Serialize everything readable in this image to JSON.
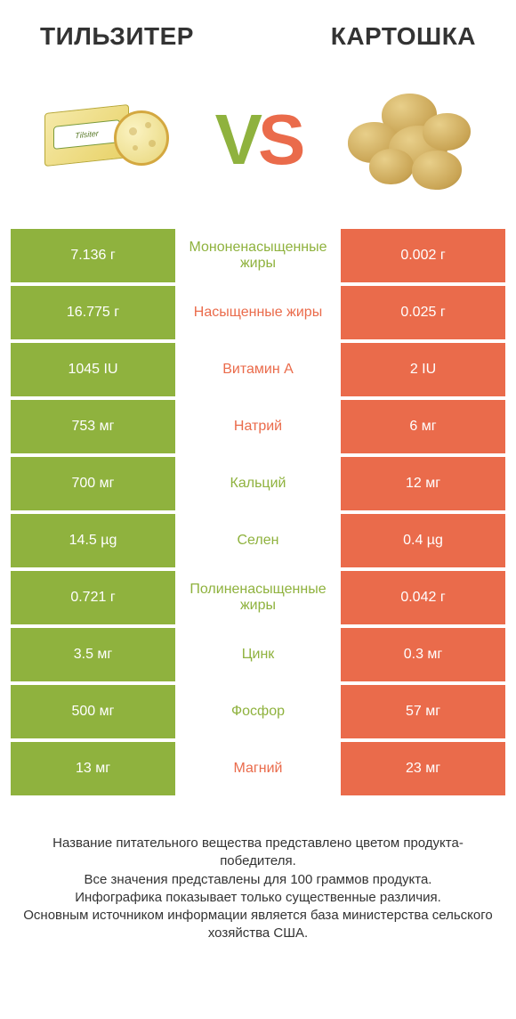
{
  "colors": {
    "left_bar": "#8fb23e",
    "right_bar": "#ea6b4b",
    "row_gap": "#ffffff",
    "title_text": "#333333",
    "vs_left": "#8fb23e",
    "vs_right": "#ea6b4b"
  },
  "titles": {
    "left": "ТИЛЬЗИТЕР",
    "right": "КАРТОШКА"
  },
  "vs": {
    "v": "V",
    "s": "S"
  },
  "cheese_label": "Tilsiter",
  "rows": [
    {
      "left": "7.136 г",
      "mid": "Мононенасыщенные жиры",
      "right": "0.002 г",
      "mid_color": "#8fb23e"
    },
    {
      "left": "16.775 г",
      "mid": "Насыщенные жиры",
      "right": "0.025 г",
      "mid_color": "#ea6b4b"
    },
    {
      "left": "1045 IU",
      "mid": "Витамин A",
      "right": "2 IU",
      "mid_color": "#ea6b4b"
    },
    {
      "left": "753 мг",
      "mid": "Натрий",
      "right": "6 мг",
      "mid_color": "#ea6b4b"
    },
    {
      "left": "700 мг",
      "mid": "Кальций",
      "right": "12 мг",
      "mid_color": "#8fb23e"
    },
    {
      "left": "14.5 µg",
      "mid": "Селен",
      "right": "0.4 µg",
      "mid_color": "#8fb23e"
    },
    {
      "left": "0.721 г",
      "mid": "Полиненасыщенные жиры",
      "right": "0.042 г",
      "mid_color": "#8fb23e"
    },
    {
      "left": "3.5 мг",
      "mid": "Цинк",
      "right": "0.3 мг",
      "mid_color": "#8fb23e"
    },
    {
      "left": "500 мг",
      "mid": "Фосфор",
      "right": "57 мг",
      "mid_color": "#8fb23e"
    },
    {
      "left": "13 мг",
      "mid": "Магний",
      "right": "23 мг",
      "mid_color": "#ea6b4b"
    }
  ],
  "footer_lines": [
    "Название питательного вещества представлено цветом продукта-победителя.",
    "Все значения представлены для 100 граммов продукта.",
    "Инфографика показывает только существенные различия.",
    "Основным источником информации является база министерства сельского хозяйства США."
  ]
}
